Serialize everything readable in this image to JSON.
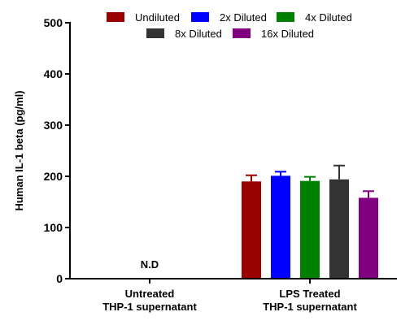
{
  "chart_data": {
    "type": "bar",
    "title": "",
    "xlabel": "",
    "ylabel": "Human IL-1 beta (pg/ml)",
    "ylim": [
      0,
      500
    ],
    "yticks": [
      0,
      100,
      200,
      300,
      400,
      500
    ],
    "grid": false,
    "legend_position": "top",
    "categories": [
      {
        "line1": "Untreated",
        "line2": "THP-1 supernatant"
      },
      {
        "line1": "LPS Treated",
        "line2": "THP-1 supernatant"
      }
    ],
    "series": [
      {
        "name": "Undiluted",
        "color": "#990000",
        "values": [
          null,
          190
        ],
        "errors": [
          null,
          12
        ]
      },
      {
        "name": "2x Diluted",
        "color": "#0000ff",
        "values": [
          null,
          201
        ],
        "errors": [
          null,
          8
        ]
      },
      {
        "name": "4x Diluted",
        "color": "#008000",
        "values": [
          null,
          191
        ],
        "errors": [
          null,
          8
        ]
      },
      {
        "name": "8x Diluted",
        "color": "#333333",
        "values": [
          null,
          194
        ],
        "errors": [
          null,
          27
        ]
      },
      {
        "name": "16x Diluted",
        "color": "#800080",
        "values": [
          null,
          158
        ],
        "errors": [
          null,
          13
        ]
      }
    ],
    "annotations": [
      {
        "text": "N.D",
        "category": 0
      }
    ]
  }
}
